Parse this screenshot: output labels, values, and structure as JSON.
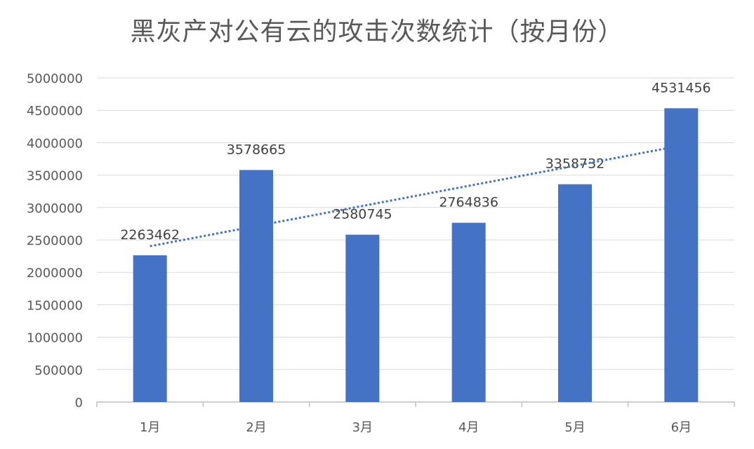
{
  "chart_data": {
    "type": "bar",
    "title": "黑灰产对公有云的攻击次数统计（按月份）",
    "categories": [
      "1月",
      "2月",
      "3月",
      "4月",
      "5月",
      "6月"
    ],
    "values": [
      2263462,
      3578665,
      2580745,
      2764836,
      3358732,
      4531456
    ],
    "data_labels": [
      "2263462",
      "3578665",
      "2580745",
      "2764836",
      "3358732",
      "4531456"
    ],
    "ylim": [
      0,
      5000000
    ],
    "yticks": [
      0,
      500000,
      1000000,
      1500000,
      2000000,
      2500000,
      3000000,
      3500000,
      4000000,
      4500000,
      5000000
    ],
    "ytick_labels": [
      "0",
      "500000",
      "1000000",
      "1500000",
      "2000000",
      "2500000",
      "3000000",
      "3500000",
      "4000000",
      "4500000",
      "5000000"
    ],
    "grid": true,
    "legend": "none",
    "trendline": {
      "type": "linear",
      "style": "dotted"
    },
    "colors": {
      "bar": "#4472C4",
      "trendline": "#4472C4",
      "grid": "#D9D9D9",
      "axis": "#BFBFBF",
      "text": "#595959"
    }
  }
}
